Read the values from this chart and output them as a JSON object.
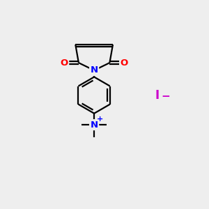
{
  "background_color": "#eeeeee",
  "bond_color": "#000000",
  "N_color": "#0000ff",
  "O_color": "#ff0000",
  "I_color": "#cc00cc",
  "figsize": [
    3.0,
    3.0
  ],
  "dpi": 100,
  "xlim": [
    0,
    10
  ],
  "ylim": [
    0,
    10
  ]
}
